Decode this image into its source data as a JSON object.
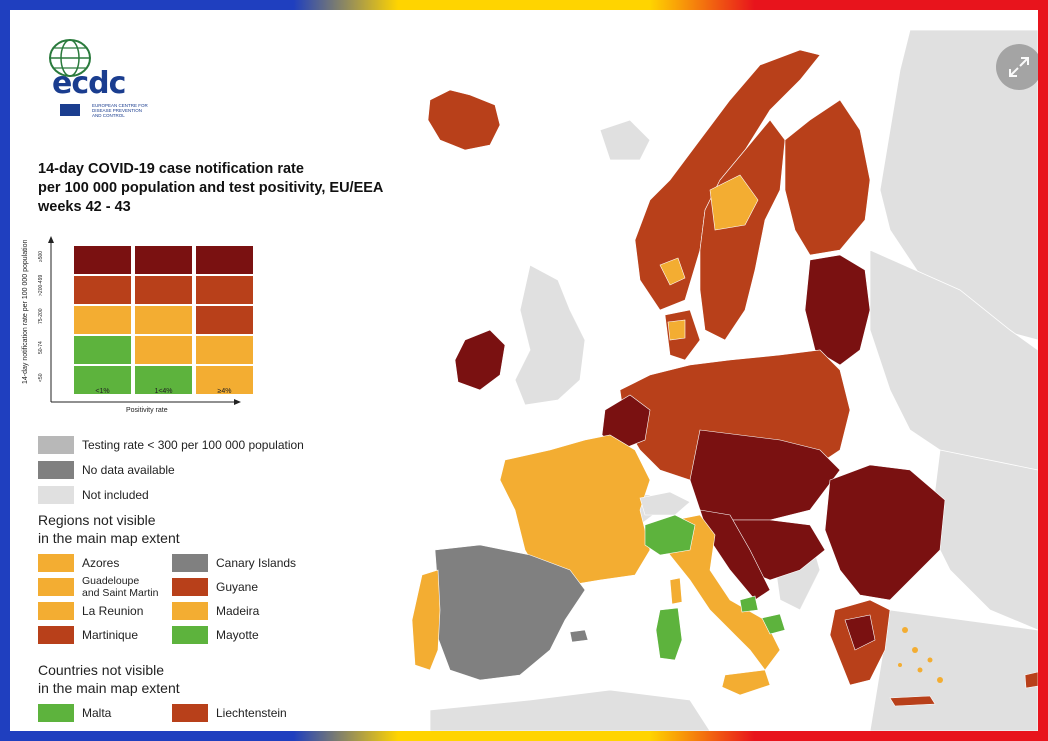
{
  "title_lines": [
    "14-day COVID-19 case notification rate",
    "per 100 000 population and test positivity, EU/EEA",
    "weeks 42 - 43"
  ],
  "colors": {
    "dark_red": "#7a1111",
    "red": "#b8401a",
    "orange": "#f3ad32",
    "green": "#5db33d",
    "grey_testing": "#b8b8b8",
    "grey_nodata": "#808080",
    "grey_notincluded": "#e0e0e0",
    "sea": "#ffffff"
  },
  "logo": {
    "text": "ecdc",
    "subtitle": "EUROPEAN CENTRE FOR DISEASE PREVENTION AND CONTROL",
    "icon": "globe-icon"
  },
  "matrix": {
    "y_label": "14-day notification rate per 100 000 population",
    "x_label": "Positivity rate",
    "x_ticks": [
      "<1%",
      "1<4%",
      "≥4%"
    ],
    "y_ticks": [
      "≥500",
      ">200-499",
      "75-200",
      "50-74",
      "<50"
    ],
    "cells": [
      [
        "dark_red",
        "dark_red",
        "dark_red"
      ],
      [
        "red",
        "red",
        "red"
      ],
      [
        "orange",
        "orange",
        "red"
      ],
      [
        "green",
        "orange",
        "orange"
      ],
      [
        "green",
        "green",
        "orange"
      ]
    ]
  },
  "legend_top": [
    {
      "label": "Testing rate < 300 per 100 000 population",
      "color": "grey_testing"
    },
    {
      "label": "No data available",
      "color": "grey_nodata"
    },
    {
      "label": "Not included",
      "color": "grey_notincluded"
    }
  ],
  "regions_heading": [
    "Regions not visible",
    "in the main map extent"
  ],
  "regions": [
    {
      "label": "Azores",
      "color": "orange"
    },
    {
      "label": "Canary Islands",
      "color": "grey_nodata"
    },
    {
      "label": "Guadeloupe\nand Saint Martin",
      "color": "orange"
    },
    {
      "label": "Guyane",
      "color": "red"
    },
    {
      "label": "La Reunion",
      "color": "orange"
    },
    {
      "label": "Madeira",
      "color": "orange"
    },
    {
      "label": "Martinique",
      "color": "red"
    },
    {
      "label": "Mayotte",
      "color": "green"
    }
  ],
  "countries_heading": [
    "Countries not visible",
    "in the main map extent"
  ],
  "countries": [
    {
      "label": "Malta",
      "color": "green"
    },
    {
      "label": "Liechtenstein",
      "color": "red"
    }
  ],
  "expand_icon": "expand-icon"
}
